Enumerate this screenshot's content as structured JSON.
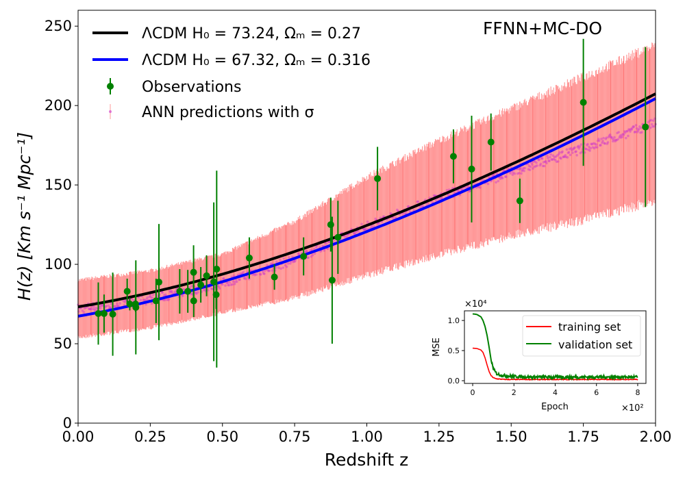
{
  "chart_data": [
    {
      "type": "scatter",
      "title": "",
      "annotation": "FFNN+MC-DO",
      "xlabel": "Redshift z",
      "ylabel": "H(z)  [Km s⁻¹ Mpc⁻¹]",
      "xlim": [
        0,
        2.0
      ],
      "ylim": [
        0,
        260
      ],
      "xticks": [
        "0.00",
        "0.25",
        "0.50",
        "0.75",
        "1.00",
        "1.25",
        "1.50",
        "1.75",
        "2.00"
      ],
      "yticks": [
        "0",
        "50",
        "100",
        "150",
        "200",
        "250"
      ],
      "grid": false,
      "legend_position": "top-left",
      "models": [
        {
          "name": "ΛCDM H₀ = 73.24, Ωₘ = 0.27",
          "H0": 73.24,
          "Om": 0.27,
          "color": "#000000"
        },
        {
          "name": "ΛCDM H₀ = 67.32, Ωₘ = 0.316",
          "H0": 67.32,
          "Om": 0.316,
          "color": "#0000ff"
        }
      ],
      "observations": {
        "name": "Observations",
        "color": "#008000",
        "z": [
          0.07,
          0.09,
          0.12,
          0.17,
          0.179,
          0.199,
          0.2,
          0.27,
          0.28,
          0.352,
          0.38,
          0.4,
          0.4004,
          0.425,
          0.445,
          0.47,
          0.4783,
          0.48,
          0.593,
          0.68,
          0.781,
          0.875,
          0.88,
          0.9,
          1.037,
          1.3,
          1.363,
          1.43,
          1.53,
          1.75,
          1.965
        ],
        "H": [
          69,
          69,
          68.6,
          83,
          75,
          75,
          72.9,
          77,
          88.8,
          83,
          83,
          95,
          77,
          87.1,
          92.8,
          89,
          80.9,
          97,
          104,
          92,
          105,
          125,
          90,
          117,
          154,
          168,
          160,
          177,
          140,
          202,
          186.5
        ],
        "sigma": [
          19.6,
          12,
          26.2,
          8,
          4,
          5,
          29.6,
          14,
          36.6,
          14,
          13.5,
          17,
          10.2,
          11.2,
          12.9,
          50,
          9,
          62,
          13,
          8,
          12,
          17,
          40,
          23,
          20,
          17,
          33.6,
          18,
          14,
          40,
          50.4
        ]
      },
      "ann_predictions": {
        "name": "ANN predictions with σ",
        "point_color": "#cc33cc",
        "band_color": "#ff9999",
        "z": [
          0.0,
          0.25,
          0.5,
          0.75,
          1.0,
          1.25,
          1.5,
          1.75,
          2.0
        ],
        "H": [
          72,
          78,
          88,
          103,
          124,
          142,
          158,
          173,
          189
        ],
        "sigma": [
          18,
          18,
          18.5,
          24,
          31,
          36,
          40,
          45,
          49
        ]
      }
    },
    {
      "type": "line",
      "xlabel": "Epoch",
      "ylabel": "MSE",
      "x_multiplier": "×10²",
      "y_multiplier": "×10⁴",
      "xlim": [
        -0.4,
        8.4
      ],
      "ylim": [
        -0.045,
        1.16
      ],
      "xticks": [
        "0",
        "2",
        "4",
        "6",
        "8"
      ],
      "yticks": [
        "0.0",
        "0.5",
        "1.0"
      ],
      "legend_position": "top-right",
      "x": [
        0,
        0.2,
        0.4,
        0.5,
        0.6,
        0.7,
        0.8,
        0.9,
        1.0,
        1.1,
        1.2,
        1.4,
        1.6,
        2,
        3,
        4,
        5,
        6,
        7,
        8
      ],
      "series": [
        {
          "name": "training set",
          "color": "#ff0000",
          "values": [
            0.54,
            0.535,
            0.51,
            0.47,
            0.38,
            0.26,
            0.15,
            0.08,
            0.05,
            0.035,
            0.03,
            0.025,
            0.02,
            0.02,
            0.02,
            0.02,
            0.02,
            0.02,
            0.02,
            0.02
          ]
        },
        {
          "name": "validation set",
          "color": "#008000",
          "values": [
            1.11,
            1.1,
            1.06,
            1.0,
            0.9,
            0.75,
            0.55,
            0.33,
            0.2,
            0.14,
            0.11,
            0.09,
            0.08,
            0.07,
            0.06,
            0.06,
            0.06,
            0.06,
            0.06,
            0.06
          ]
        }
      ]
    }
  ]
}
